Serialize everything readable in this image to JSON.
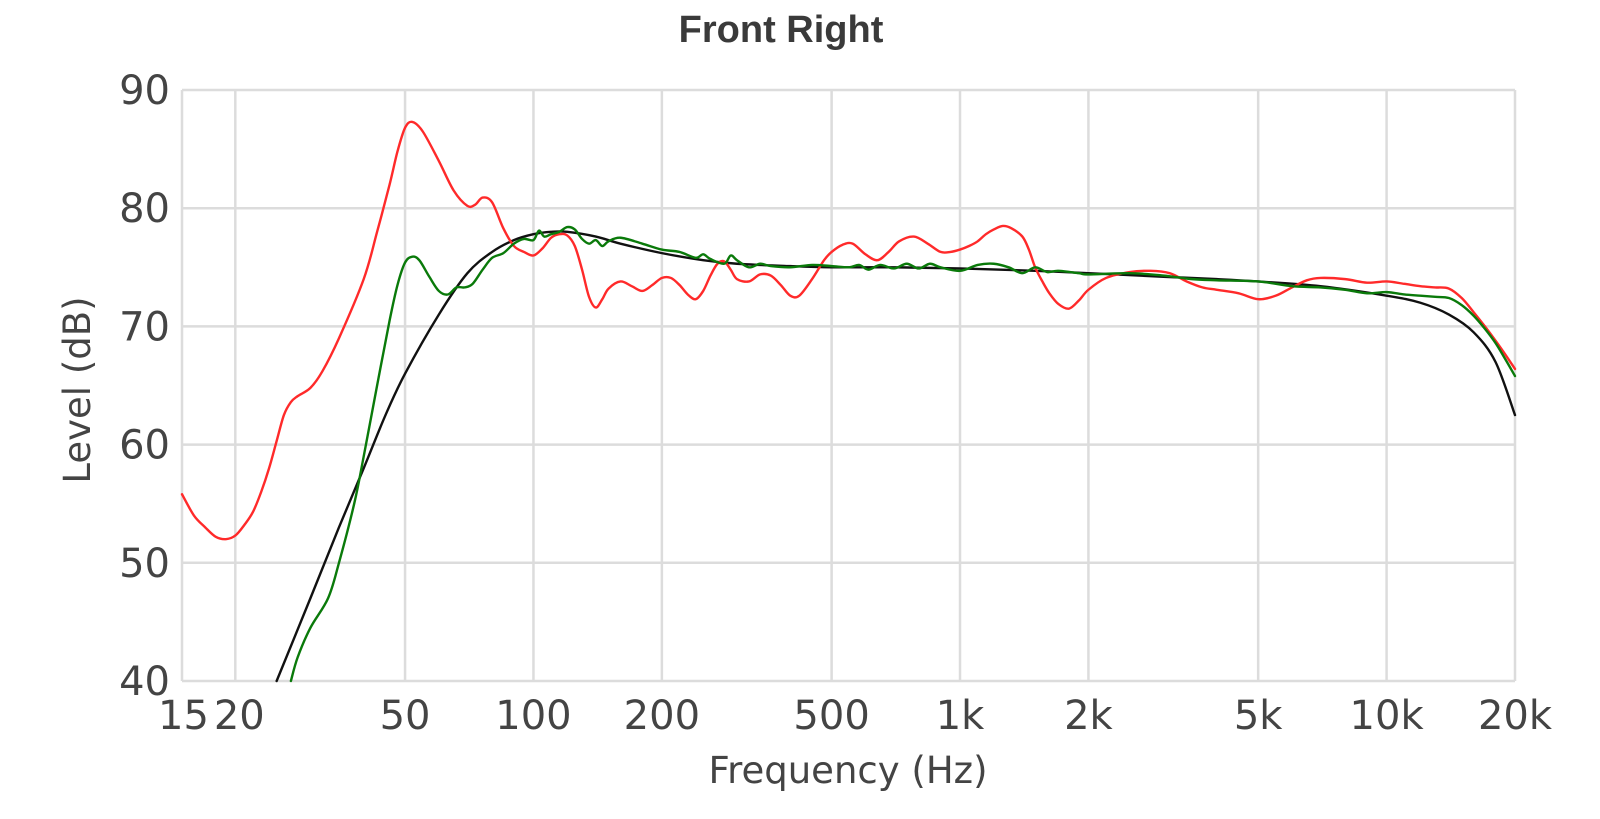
{
  "chart_data": {
    "type": "line",
    "title": "Front Right",
    "xlabel": "Frequency (Hz)",
    "ylabel": "Level (dB)",
    "x_scale": "log",
    "xlim": [
      15,
      20000
    ],
    "ylim": [
      40,
      90
    ],
    "grid": true,
    "legend": "none",
    "x_ticks": [
      {
        "value": 15,
        "label": "15"
      },
      {
        "value": 20,
        "label": "20"
      },
      {
        "value": 50,
        "label": "50"
      },
      {
        "value": 100,
        "label": "100"
      },
      {
        "value": 200,
        "label": "200"
      },
      {
        "value": 500,
        "label": "500"
      },
      {
        "value": 1000,
        "label": "1k"
      },
      {
        "value": 2000,
        "label": "2k"
      },
      {
        "value": 5000,
        "label": "5k"
      },
      {
        "value": 10000,
        "label": "10k"
      },
      {
        "value": 20000,
        "label": "20k"
      }
    ],
    "x_grid": [
      20,
      50,
      100,
      200,
      500,
      1000,
      2000,
      5000,
      10000,
      20000
    ],
    "y_ticks": [
      {
        "value": 40,
        "label": "40"
      },
      {
        "value": 50,
        "label": "50"
      },
      {
        "value": 60,
        "label": "60"
      },
      {
        "value": 70,
        "label": "70"
      },
      {
        "value": 80,
        "label": "80"
      },
      {
        "value": 90,
        "label": "90"
      }
    ],
    "series": [
      {
        "id": "target",
        "color": "#111111",
        "points": [
          [
            25,
            40.0
          ],
          [
            30,
            47.0
          ],
          [
            35,
            53.0
          ],
          [
            40,
            58.0
          ],
          [
            45,
            62.5
          ],
          [
            50,
            66.0
          ],
          [
            60,
            71.0
          ],
          [
            70,
            74.5
          ],
          [
            80,
            76.3
          ],
          [
            90,
            77.3
          ],
          [
            100,
            77.8
          ],
          [
            110,
            78.0
          ],
          [
            120,
            78.0
          ],
          [
            140,
            77.6
          ],
          [
            160,
            77.0
          ],
          [
            200,
            76.2
          ],
          [
            250,
            75.6
          ],
          [
            300,
            75.3
          ],
          [
            400,
            75.1
          ],
          [
            500,
            75.0
          ],
          [
            700,
            75.0
          ],
          [
            1000,
            74.9
          ],
          [
            1500,
            74.7
          ],
          [
            2000,
            74.5
          ],
          [
            3000,
            74.2
          ],
          [
            4000,
            74.0
          ],
          [
            5000,
            73.8
          ],
          [
            7000,
            73.4
          ],
          [
            10000,
            72.6
          ],
          [
            12000,
            72.0
          ],
          [
            14000,
            71.0
          ],
          [
            16000,
            69.5
          ],
          [
            18000,
            67.0
          ],
          [
            20000,
            62.5
          ]
        ]
      },
      {
        "id": "measured",
        "color": "#ff2a2a",
        "points": [
          [
            15,
            55.8
          ],
          [
            16,
            54.0
          ],
          [
            17,
            53.0
          ],
          [
            18,
            52.2
          ],
          [
            19,
            52.0
          ],
          [
            20,
            52.3
          ],
          [
            21,
            53.2
          ],
          [
            22,
            54.3
          ],
          [
            23,
            56.0
          ],
          [
            24,
            58.0
          ],
          [
            25,
            60.3
          ],
          [
            26,
            62.5
          ],
          [
            27,
            63.6
          ],
          [
            28,
            64.1
          ],
          [
            30,
            64.8
          ],
          [
            32,
            66.2
          ],
          [
            35,
            69.0
          ],
          [
            40,
            74.0
          ],
          [
            43,
            78.0
          ],
          [
            46,
            82.0
          ],
          [
            48,
            84.8
          ],
          [
            50,
            86.8
          ],
          [
            52,
            87.3
          ],
          [
            55,
            86.5
          ],
          [
            60,
            84.0
          ],
          [
            65,
            81.5
          ],
          [
            70,
            80.2
          ],
          [
            73,
            80.3
          ],
          [
            76,
            80.9
          ],
          [
            80,
            80.5
          ],
          [
            85,
            78.3
          ],
          [
            90,
            76.8
          ],
          [
            95,
            76.3
          ],
          [
            100,
            76.0
          ],
          [
            105,
            76.6
          ],
          [
            110,
            77.5
          ],
          [
            115,
            77.8
          ],
          [
            120,
            77.7
          ],
          [
            125,
            76.8
          ],
          [
            130,
            74.8
          ],
          [
            135,
            72.5
          ],
          [
            140,
            71.6
          ],
          [
            145,
            72.3
          ],
          [
            150,
            73.2
          ],
          [
            160,
            73.8
          ],
          [
            170,
            73.4
          ],
          [
            180,
            73.0
          ],
          [
            190,
            73.5
          ],
          [
            200,
            74.1
          ],
          [
            210,
            74.1
          ],
          [
            220,
            73.5
          ],
          [
            230,
            72.7
          ],
          [
            240,
            72.3
          ],
          [
            250,
            73.0
          ],
          [
            260,
            74.3
          ],
          [
            270,
            75.3
          ],
          [
            280,
            75.5
          ],
          [
            290,
            74.8
          ],
          [
            300,
            74.0
          ],
          [
            320,
            73.8
          ],
          [
            340,
            74.4
          ],
          [
            360,
            74.3
          ],
          [
            380,
            73.5
          ],
          [
            400,
            72.6
          ],
          [
            420,
            72.6
          ],
          [
            450,
            74.0
          ],
          [
            480,
            75.6
          ],
          [
            500,
            76.3
          ],
          [
            530,
            76.9
          ],
          [
            560,
            77.0
          ],
          [
            600,
            76.1
          ],
          [
            640,
            75.6
          ],
          [
            680,
            76.3
          ],
          [
            720,
            77.2
          ],
          [
            780,
            77.6
          ],
          [
            840,
            77.0
          ],
          [
            900,
            76.3
          ],
          [
            950,
            76.3
          ],
          [
            1000,
            76.5
          ],
          [
            1050,
            76.8
          ],
          [
            1100,
            77.2
          ],
          [
            1150,
            77.8
          ],
          [
            1200,
            78.2
          ],
          [
            1260,
            78.5
          ],
          [
            1320,
            78.3
          ],
          [
            1400,
            77.6
          ],
          [
            1450,
            76.5
          ],
          [
            1500,
            75.0
          ],
          [
            1560,
            73.8
          ],
          [
            1620,
            72.8
          ],
          [
            1700,
            71.9
          ],
          [
            1800,
            71.5
          ],
          [
            1900,
            72.2
          ],
          [
            2000,
            73.1
          ],
          [
            2200,
            74.1
          ],
          [
            2500,
            74.6
          ],
          [
            2800,
            74.7
          ],
          [
            3100,
            74.5
          ],
          [
            3400,
            73.8
          ],
          [
            3700,
            73.3
          ],
          [
            4000,
            73.1
          ],
          [
            4500,
            72.8
          ],
          [
            5000,
            72.3
          ],
          [
            5500,
            72.6
          ],
          [
            6000,
            73.3
          ],
          [
            6500,
            73.9
          ],
          [
            7000,
            74.1
          ],
          [
            8000,
            74.0
          ],
          [
            9000,
            73.7
          ],
          [
            10000,
            73.8
          ],
          [
            11000,
            73.6
          ],
          [
            12000,
            73.4
          ],
          [
            13000,
            73.3
          ],
          [
            14000,
            73.2
          ],
          [
            15000,
            72.4
          ],
          [
            16000,
            71.2
          ],
          [
            17000,
            70.0
          ],
          [
            18000,
            68.8
          ],
          [
            19000,
            67.6
          ],
          [
            20000,
            66.4
          ]
        ]
      },
      {
        "id": "corrected",
        "color": "#0a7a0a",
        "points": [
          [
            27,
            40.0
          ],
          [
            28,
            42.0
          ],
          [
            30,
            44.5
          ],
          [
            33,
            47.0
          ],
          [
            35,
            50.0
          ],
          [
            38,
            55.0
          ],
          [
            40,
            59.0
          ],
          [
            43,
            65.0
          ],
          [
            46,
            70.5
          ],
          [
            48,
            73.5
          ],
          [
            50,
            75.4
          ],
          [
            52,
            75.9
          ],
          [
            54,
            75.6
          ],
          [
            57,
            74.2
          ],
          [
            60,
            73.0
          ],
          [
            63,
            72.7
          ],
          [
            66,
            73.3
          ],
          [
            69,
            73.3
          ],
          [
            72,
            73.6
          ],
          [
            76,
            74.8
          ],
          [
            80,
            75.8
          ],
          [
            85,
            76.2
          ],
          [
            90,
            77.0
          ],
          [
            95,
            77.4
          ],
          [
            100,
            77.3
          ],
          [
            103,
            78.1
          ],
          [
            106,
            77.6
          ],
          [
            110,
            77.8
          ],
          [
            115,
            78.0
          ],
          [
            120,
            78.4
          ],
          [
            125,
            78.2
          ],
          [
            130,
            77.4
          ],
          [
            135,
            77.0
          ],
          [
            140,
            77.3
          ],
          [
            145,
            76.8
          ],
          [
            150,
            77.2
          ],
          [
            160,
            77.5
          ],
          [
            180,
            77.0
          ],
          [
            200,
            76.5
          ],
          [
            220,
            76.3
          ],
          [
            240,
            75.8
          ],
          [
            250,
            76.1
          ],
          [
            260,
            75.7
          ],
          [
            280,
            75.3
          ],
          [
            290,
            76.0
          ],
          [
            300,
            75.6
          ],
          [
            320,
            75.0
          ],
          [
            340,
            75.3
          ],
          [
            360,
            75.1
          ],
          [
            400,
            75.0
          ],
          [
            450,
            75.2
          ],
          [
            500,
            75.1
          ],
          [
            550,
            75.0
          ],
          [
            580,
            75.2
          ],
          [
            610,
            74.8
          ],
          [
            650,
            75.2
          ],
          [
            700,
            74.9
          ],
          [
            750,
            75.3
          ],
          [
            800,
            74.9
          ],
          [
            850,
            75.3
          ],
          [
            900,
            75.0
          ],
          [
            1000,
            74.7
          ],
          [
            1100,
            75.2
          ],
          [
            1200,
            75.3
          ],
          [
            1300,
            75.0
          ],
          [
            1400,
            74.5
          ],
          [
            1500,
            75.0
          ],
          [
            1600,
            74.6
          ],
          [
            1700,
            74.7
          ],
          [
            1900,
            74.5
          ],
          [
            2000,
            74.4
          ],
          [
            2500,
            74.5
          ],
          [
            3000,
            74.3
          ],
          [
            3500,
            74.0
          ],
          [
            4000,
            73.9
          ],
          [
            5000,
            73.8
          ],
          [
            6000,
            73.4
          ],
          [
            7000,
            73.3
          ],
          [
            8000,
            73.1
          ],
          [
            9000,
            72.8
          ],
          [
            10000,
            72.9
          ],
          [
            11000,
            72.7
          ],
          [
            12000,
            72.6
          ],
          [
            13000,
            72.5
          ],
          [
            14000,
            72.4
          ],
          [
            15000,
            71.8
          ],
          [
            16000,
            70.9
          ],
          [
            17000,
            69.8
          ],
          [
            18000,
            68.6
          ],
          [
            19000,
            67.2
          ],
          [
            20000,
            65.8
          ]
        ]
      }
    ]
  }
}
